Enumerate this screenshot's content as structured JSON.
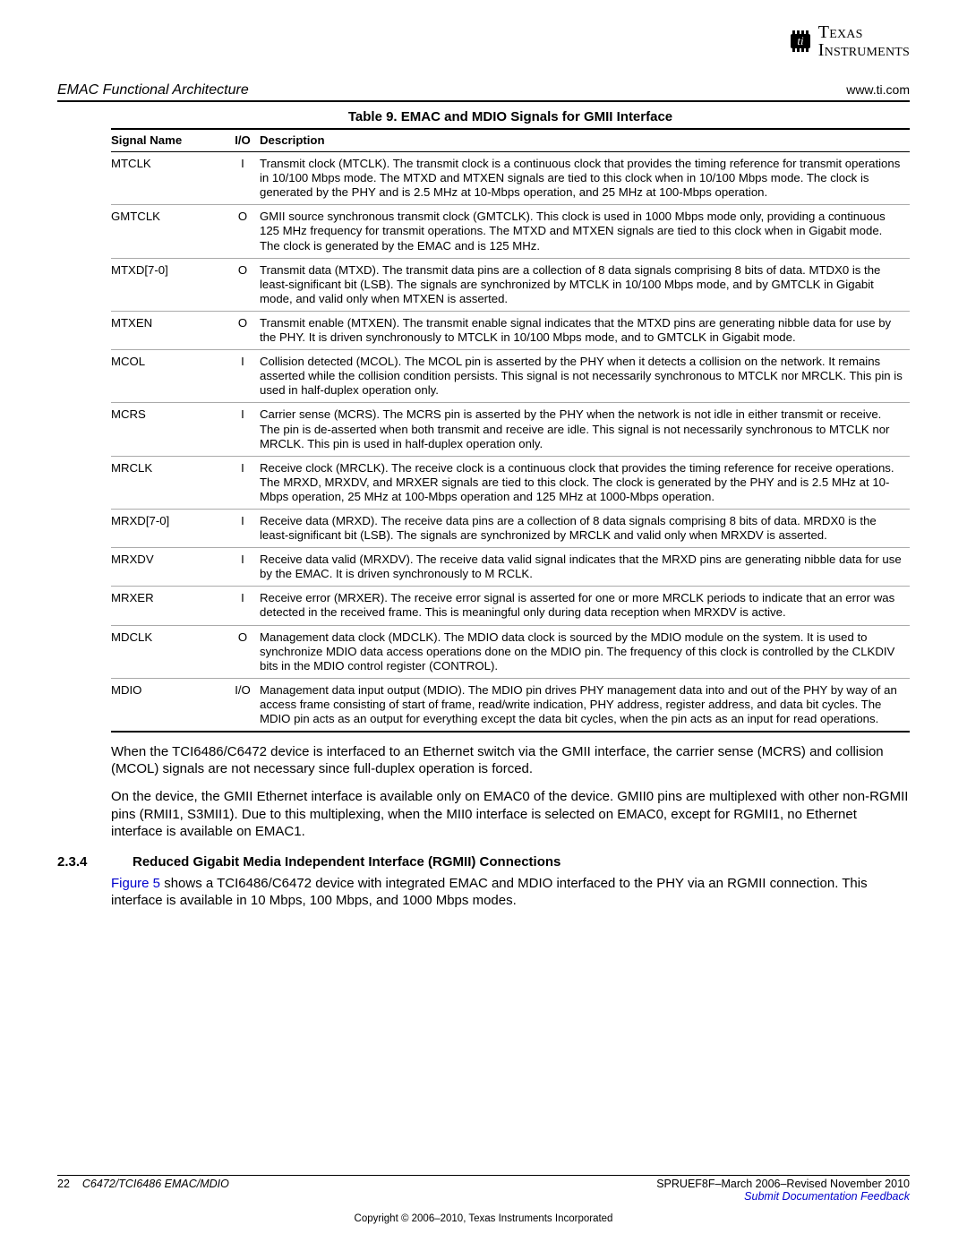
{
  "header": {
    "section_title": "EMAC Functional Architecture",
    "url": "www.ti.com"
  },
  "logo": {
    "line1": "Texas",
    "line2": "Instruments"
  },
  "table": {
    "title": "Table 9. EMAC and MDIO Signals for GMII Interface",
    "columns": [
      "Signal Name",
      "I/O",
      "Description"
    ],
    "rows": [
      {
        "name": "MTCLK",
        "io": "I",
        "desc": "Transmit clock (MTCLK). The transmit clock is a continuous clock that provides the timing reference for transmit operations in 10/100 Mbps mode. The MTXD and MTXEN signals are tied to this clock when in 10/100 Mbps mode. The clock is generated by the PHY and is 2.5 MHz at 10-Mbps operation, and 25 MHz at 100-Mbps operation."
      },
      {
        "name": "GMTCLK",
        "io": "O",
        "desc": "GMII source synchronous transmit clock (GMTCLK). This clock is used in 1000 Mbps mode only, providing a continuous 125 MHz frequency for transmit operations. The MTXD and MTXEN signals are tied to this clock when in Gigabit mode. The clock is generated by the EMAC and is 125 MHz."
      },
      {
        "name": "MTXD[7-0]",
        "io": "O",
        "desc": "Transmit data (MTXD). The transmit data pins are a collection of 8 data signals comprising 8 bits of data. MTDX0 is the least-significant bit (LSB). The signals are synchronized by MTCLK in 10/100 Mbps mode, and by GMTCLK in Gigabit mode, and valid only when MTXEN is asserted."
      },
      {
        "name": "MTXEN",
        "io": "O",
        "desc": "Transmit enable (MTXEN). The transmit enable signal indicates that the MTXD pins are generating nibble data for use by the PHY. It is driven synchronously to MTCLK in 10/100 Mbps mode, and to GMTCLK in Gigabit mode."
      },
      {
        "name": "MCOL",
        "io": "I",
        "desc": "Collision detected (MCOL). The MCOL pin is asserted by the PHY when it detects a collision on the network. It remains asserted while the collision condition persists. This signal is not necessarily synchronous to MTCLK nor MRCLK. This pin is used in half-duplex operation only."
      },
      {
        "name": "MCRS",
        "io": "I",
        "desc": "Carrier sense (MCRS). The MCRS pin is asserted by the PHY when the network is not idle in either transmit or receive. The pin is de-asserted when both transmit and receive are idle. This signal is not necessarily synchronous to MTCLK nor MRCLK. This pin is used in half-duplex operation only."
      },
      {
        "name": "MRCLK",
        "io": "I",
        "desc": "Receive clock (MRCLK). The receive clock is a continuous clock that provides the timing reference for receive operations. The MRXD, MRXDV, and MRXER signals are tied to this clock. The clock is generated by the PHY and is 2.5 MHz at 10-Mbps operation, 25 MHz at 100-Mbps operation and 125 MHz at 1000-Mbps operation."
      },
      {
        "name": "MRXD[7-0]",
        "io": "I",
        "desc": "Receive data (MRXD). The receive data pins are a collection of 8 data signals comprising 8 bits of data. MRDX0 is the least-significant bit (LSB). The signals are synchronized by MRCLK and valid only when MRXDV is asserted."
      },
      {
        "name": "MRXDV",
        "io": "I",
        "desc": "Receive data valid (MRXDV). The receive data valid signal indicates that the MRXD pins are generating nibble data for use by the EMAC. It is driven synchronously to M RCLK."
      },
      {
        "name": "MRXER",
        "io": "I",
        "desc": "Receive error (MRXER). The receive error signal is asserted for one or more MRCLK periods to indicate that an error was detected in the received frame. This is meaningful only during data reception when MRXDV is active."
      },
      {
        "name": "MDCLK",
        "io": "O",
        "desc": "Management data clock (MDCLK). The MDIO data clock is sourced by the MDIO module on the system. It is used to synchronize MDIO data access operations done on the MDIO pin. The frequency of this clock is controlled by the CLKDIV bits in the MDIO control register (CONTROL)."
      },
      {
        "name": "MDIO",
        "io": "I/O",
        "desc": "Management data input output (MDIO). The MDIO pin drives PHY management data into and out of the PHY by way of an access frame consisting of start of frame, read/write indication, PHY address, register address, and data bit cycles. The MDIO pin acts as an output for everything except the data bit cycles, when the pin acts as an input for read operations."
      }
    ]
  },
  "body": {
    "p1": "When the TCI6486/C6472 device is interfaced to an Ethernet switch via the GMII interface, the carrier sense (MCRS) and collision (MCOL) signals are not necessary since full-duplex operation is forced.",
    "p2": "On the device, the GMII Ethernet interface is available only on EMAC0 of the device. GMII0 pins are multiplexed with other non-RGMII pins (RMII1, S3MII1). Due to this multiplexing, when the MII0 interface is selected on EMAC0, except for RGMII1, no Ethernet interface is available on EMAC1."
  },
  "section": {
    "num": "2.3.4",
    "title": "Reduced Gigabit Media Independent Interface (RGMII) Connections",
    "link_text": "Figure 5",
    "p_rest": " shows a TCI6486/C6472 device with integrated EMAC and MDIO interfaced to the PHY via an RGMII connection. This interface is available in 10 Mbps, 100 Mbps, and 1000 Mbps modes."
  },
  "footer": {
    "page_num": "22",
    "doc_title": "C6472/TCI6486 EMAC/MDIO",
    "doc_rev": "SPRUEF8F–March 2006–Revised November 2010",
    "feedback": "Submit Documentation Feedback",
    "copyright": "Copyright © 2006–2010, Texas Instruments Incorporated"
  }
}
